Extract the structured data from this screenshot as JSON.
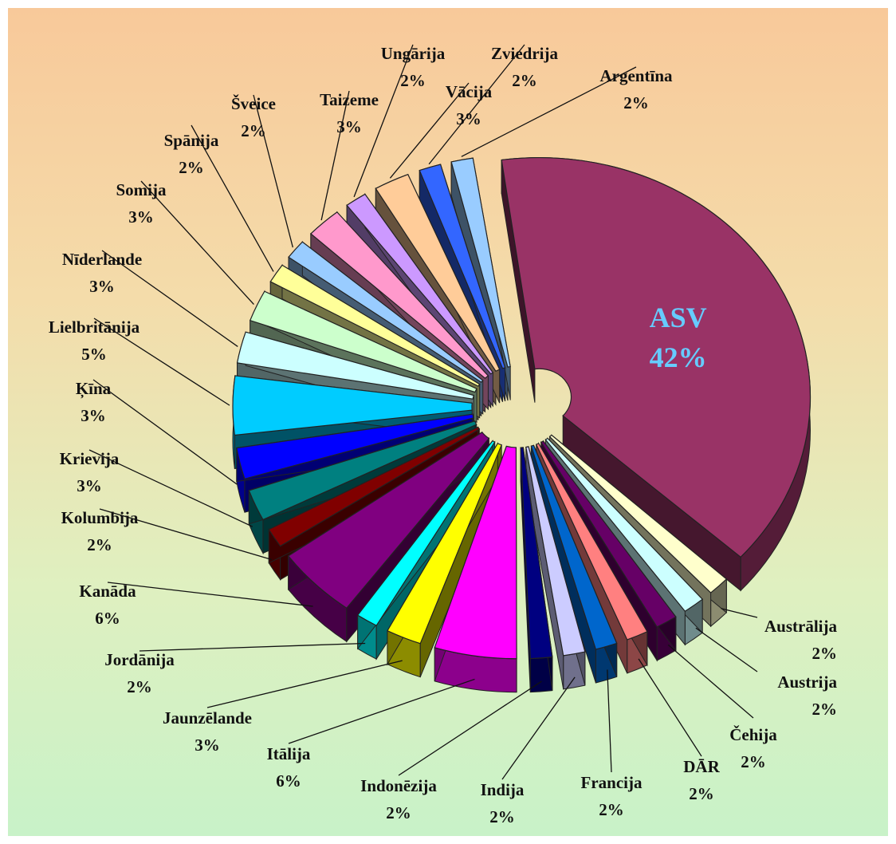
{
  "chart_data": {
    "type": "pie",
    "title": "",
    "style": "3d-exploded",
    "grid": false,
    "legend": "none",
    "slices": [
      {
        "name": "ASV",
        "percent": 42,
        "color": "#993366",
        "highlight": "#66ccff"
      },
      {
        "name": "Austrālija",
        "percent": 2,
        "color": "#ffffcc"
      },
      {
        "name": "Austrija",
        "percent": 2,
        "color": "#ccffff"
      },
      {
        "name": "Čehija",
        "percent": 2,
        "color": "#660066"
      },
      {
        "name": "DĀR",
        "percent": 2,
        "color": "#ff8080"
      },
      {
        "name": "Francija",
        "percent": 2,
        "color": "#0066cc"
      },
      {
        "name": "Indija",
        "percent": 2,
        "color": "#ccccff"
      },
      {
        "name": "Indonēzija",
        "percent": 2,
        "color": "#000080"
      },
      {
        "name": "Itālija",
        "percent": 6,
        "color": "#ff00ff"
      },
      {
        "name": "Jaunzēlande",
        "percent": 3,
        "color": "#ffff00"
      },
      {
        "name": "Jordānija",
        "percent": 2,
        "color": "#00ffff"
      },
      {
        "name": "Kanāda",
        "percent": 6,
        "color": "#800080"
      },
      {
        "name": "Kolumbija",
        "percent": 2,
        "color": "#800000"
      },
      {
        "name": "Krievija",
        "percent": 3,
        "color": "#008080"
      },
      {
        "name": "Ķīna",
        "percent": 3,
        "color": "#0000ff"
      },
      {
        "name": "Lielbritānija",
        "percent": 5,
        "color": "#00ccff"
      },
      {
        "name": "Nīderlande",
        "percent": 3,
        "color": "#ccffff"
      },
      {
        "name": "Somija",
        "percent": 3,
        "color": "#ccffcc"
      },
      {
        "name": "Spānija",
        "percent": 2,
        "color": "#ffff99"
      },
      {
        "name": "Šveice",
        "percent": 2,
        "color": "#99ccff"
      },
      {
        "name": "Taizeme",
        "percent": 3,
        "color": "#ff99cc"
      },
      {
        "name": "Ungārija",
        "percent": 2,
        "color": "#cc99ff"
      },
      {
        "name": "Vācija",
        "percent": 3,
        "color": "#ffcc99"
      },
      {
        "name": "Zviedrija",
        "percent": 2,
        "color": "#3366ff"
      },
      {
        "name": "Argentīna",
        "percent": 2,
        "color": "#99ccff"
      }
    ]
  }
}
